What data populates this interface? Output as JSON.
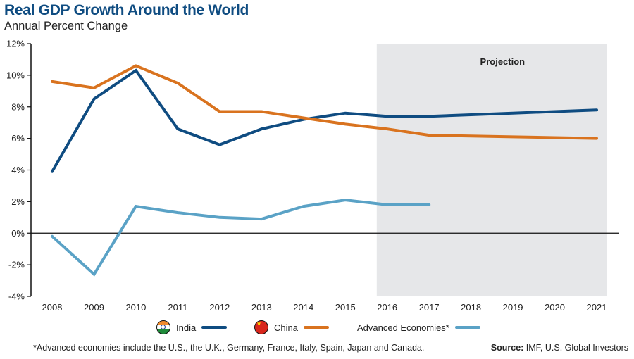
{
  "header": {
    "title": "Real GDP Growth Around the World",
    "subtitle": "Annual Percent Change"
  },
  "chart_data": {
    "type": "line",
    "title": "Real GDP Growth Around the World",
    "subtitle": "Annual Percent Change",
    "xlabel": "",
    "ylabel": "",
    "x": [
      2008,
      2009,
      2010,
      2011,
      2012,
      2013,
      2014,
      2015,
      2016,
      2017,
      2018,
      2019,
      2020,
      2021
    ],
    "x_tick_labels": [
      "2008",
      "2009",
      "2010",
      "2011",
      "2012",
      "2013",
      "2014",
      "2015",
      "2016",
      "2017",
      "2018",
      "2019",
      "2020",
      "2021"
    ],
    "ylim": [
      -4,
      12
    ],
    "y_ticks": [
      -4,
      -2,
      0,
      2,
      4,
      6,
      8,
      10,
      12
    ],
    "y_tick_labels": [
      "-4%",
      "-2%",
      "0%",
      "2%",
      "4%",
      "6%",
      "8%",
      "10%",
      "12%"
    ],
    "grid": false,
    "zero_line": true,
    "shaded_region": {
      "label": "Projection",
      "x_start": 2015.75,
      "x_end": 2021.25,
      "color": "#e6e7e9"
    },
    "series": [
      {
        "name": "India",
        "color": "#0f4c81",
        "values": [
          3.9,
          8.5,
          10.3,
          6.6,
          5.6,
          6.6,
          7.2,
          7.6,
          7.4,
          7.4,
          7.5,
          7.6,
          7.7,
          7.8
        ]
      },
      {
        "name": "China",
        "color": "#d9731f",
        "values": [
          9.6,
          9.2,
          10.6,
          9.5,
          7.7,
          7.7,
          7.3,
          6.9,
          6.6,
          6.2,
          6.15,
          6.1,
          6.05,
          6.0
        ]
      },
      {
        "name": "Advanced Economies*",
        "color": "#5aa2c6",
        "values": [
          -0.2,
          -2.6,
          1.7,
          1.3,
          1.0,
          0.9,
          1.7,
          2.1,
          1.8,
          1.8,
          null,
          null,
          null,
          null
        ]
      }
    ],
    "legend": {
      "placement": "bottom",
      "entries": [
        {
          "label": "India",
          "icon": "india-flag-icon",
          "color": "#0f4c81"
        },
        {
          "label": "China",
          "icon": "china-flag-icon",
          "color": "#d9731f"
        },
        {
          "label": "Advanced Economies*",
          "icon": null,
          "color": "#5aa2c6"
        }
      ]
    }
  },
  "footer": {
    "footnote": "*Advanced economies include the U.S., the U.K., Germany, France, Italy, Spain, Japan and Canada.",
    "source_label": "Source:",
    "source_text": " IMF, U.S. Global Investors"
  }
}
